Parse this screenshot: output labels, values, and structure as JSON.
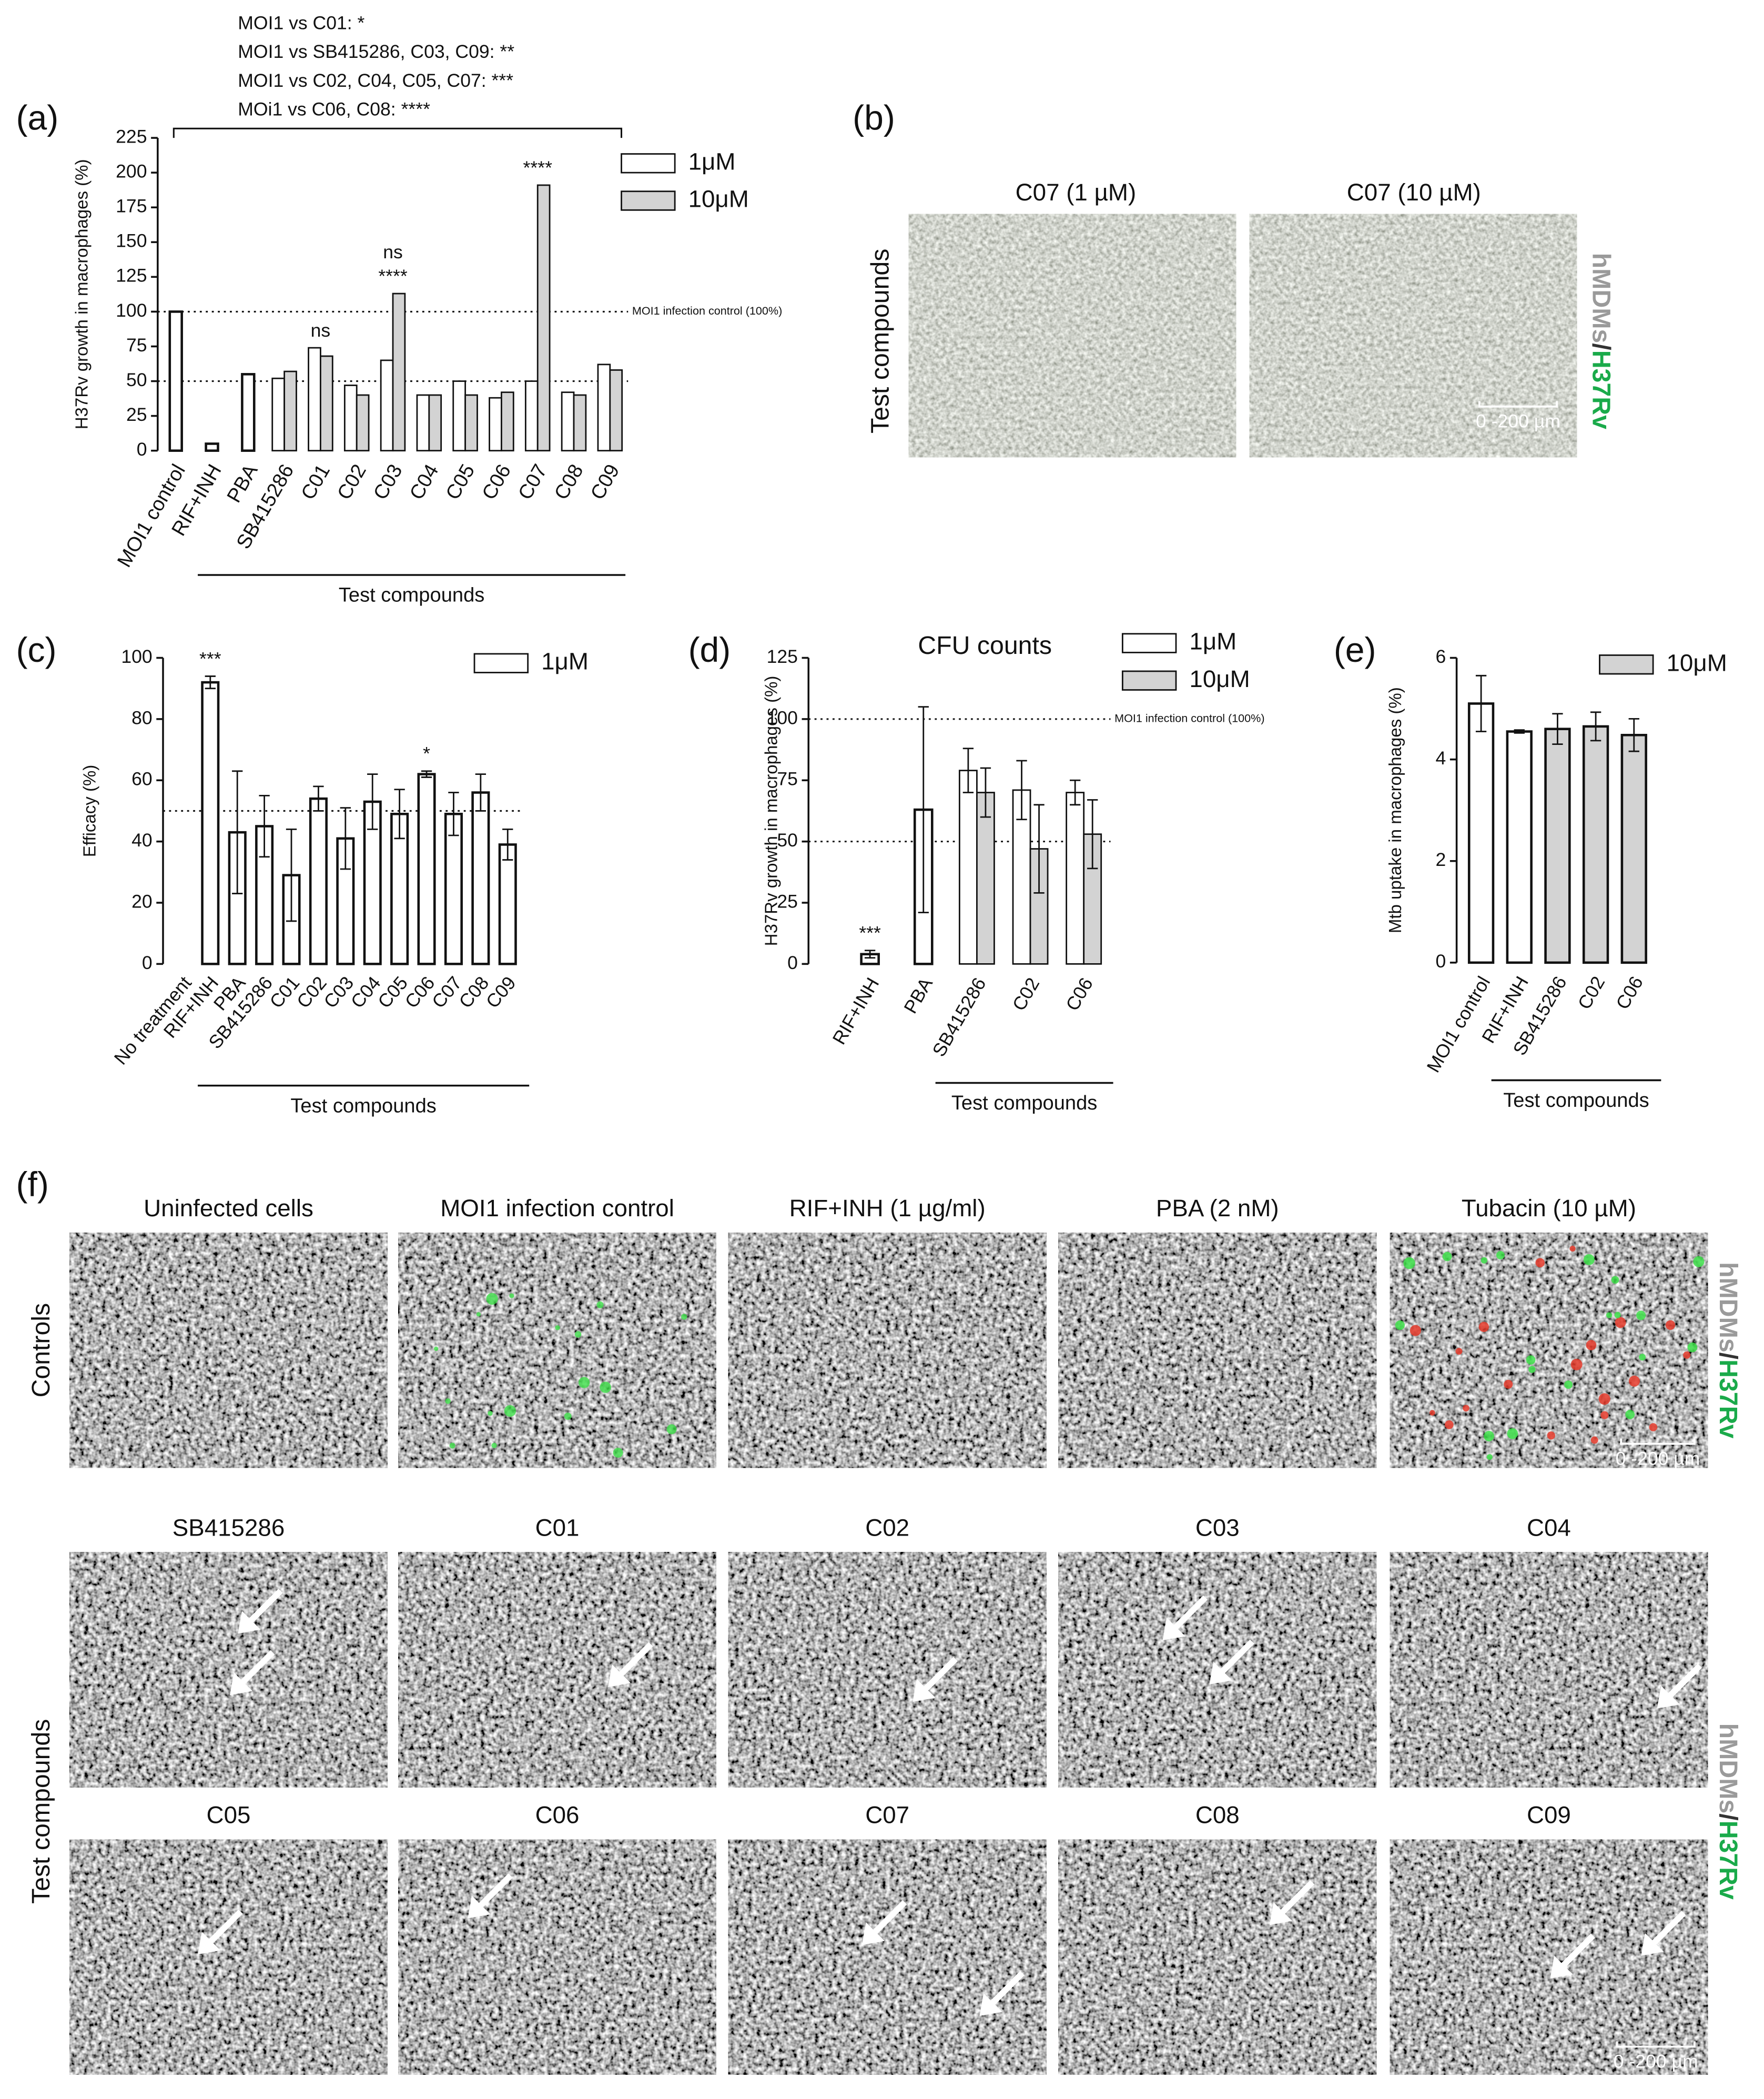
{
  "chart_data": [
    {
      "type": "bar",
      "panel_label": "(a)",
      "notes": [
        "MOI1 vs C01: *",
        "MOI1 vs SB415286, C03, C09: **",
        "MOI1 vs C02, C04, C05, C07: ***",
        "MOi1 vs C06, C08: ****"
      ],
      "ylabel": "H37Rv growth in macrophages (%)",
      "group_label": "Test compounds",
      "categories": [
        "MOI1 control",
        "RIF+INH",
        "PBA",
        "SB415286",
        "C01",
        "C02",
        "C03",
        "C04",
        "C05",
        "C06",
        "C07",
        "C08",
        "C09"
      ],
      "series": [
        {
          "name": "1μM",
          "color": "#ffffff",
          "values": [
            100,
            5,
            55,
            52,
            74,
            47,
            65,
            40,
            50,
            38,
            50,
            42,
            62
          ]
        },
        {
          "name": "10μM",
          "color": "#d3d3d3",
          "values": [
            null,
            null,
            null,
            57,
            68,
            40,
            113,
            40,
            40,
            42,
            191,
            40,
            58
          ]
        }
      ],
      "ylim": [
        0,
        225
      ],
      "yticks": [
        0,
        25,
        50,
        75,
        100,
        125,
        150,
        175,
        200,
        225
      ],
      "reference_lines": [
        {
          "value": 100,
          "label": "MOI1 infection control (100%)"
        },
        {
          "value": 50
        }
      ],
      "annotations": [
        {
          "text": "ns",
          "category": "C01"
        },
        {
          "text": "****",
          "category": "C03"
        },
        {
          "text": "ns",
          "category": "C03"
        },
        {
          "text": "****",
          "category": "C07"
        }
      ]
    },
    {
      "type": "bar",
      "panel_label": "(c)",
      "ylabel": "Efficacy (%)",
      "group_label": "Test compounds",
      "categories": [
        "No treatment",
        "RIF+INH",
        "PBA",
        "SB415286",
        "C01",
        "C02",
        "C03",
        "C04",
        "C05",
        "C06",
        "C07",
        "C08",
        "C09"
      ],
      "series": [
        {
          "name": "1μM",
          "color": "#ffffff",
          "values": [
            null,
            92,
            43,
            45,
            29,
            54,
            41,
            53,
            49,
            62,
            49,
            56,
            39
          ],
          "errors": [
            null,
            2,
            20,
            10,
            15,
            4,
            10,
            9,
            8,
            1,
            7,
            6,
            5
          ]
        }
      ],
      "ylim": [
        0,
        100
      ],
      "yticks": [
        0,
        20,
        40,
        60,
        80,
        100
      ],
      "reference_lines": [
        {
          "value": 50
        }
      ],
      "annotations": [
        {
          "text": "***",
          "category": "RIF+INH"
        },
        {
          "text": "*",
          "category": "C06"
        }
      ]
    },
    {
      "type": "bar",
      "panel_label": "(d)",
      "title": "CFU counts",
      "ylabel": "H37Rv growth in macrophages (%)",
      "group_label": "Test compounds",
      "categories": [
        "RIF+INH",
        "PBA",
        "SB415286",
        "C02",
        "C06"
      ],
      "series": [
        {
          "name": "1μM",
          "color": "#ffffff",
          "values": [
            4,
            63,
            79,
            71,
            70
          ],
          "errors": [
            1.5,
            42,
            9,
            12,
            5
          ]
        },
        {
          "name": "10μM",
          "color": "#d3d3d3",
          "values": [
            null,
            null,
            70,
            47,
            53
          ],
          "errors": [
            null,
            null,
            10,
            18,
            14
          ]
        }
      ],
      "ylim": [
        0,
        125
      ],
      "yticks": [
        0,
        25,
        50,
        75,
        100,
        125
      ],
      "reference_lines": [
        {
          "value": 100,
          "label": "MOI1 infection control (100%)"
        },
        {
          "value": 50
        }
      ],
      "annotations": [
        {
          "text": "***",
          "category": "RIF+INH"
        }
      ]
    },
    {
      "type": "bar",
      "panel_label": "(e)",
      "ylabel": "Mtb uptake in macrophages (%)",
      "group_label": "Test compounds",
      "categories": [
        "MOI1 control",
        "RIF+INH",
        "SB415286",
        "C02",
        "C06"
      ],
      "series": [
        {
          "color": "#ffffff",
          "values": [
            5.1,
            4.55,
            null,
            null,
            null
          ],
          "errors": [
            0.55,
            0.03,
            null,
            null,
            null
          ]
        },
        {
          "name": "10μM",
          "color": "#d3d3d3",
          "values": [
            null,
            null,
            4.6,
            4.65,
            4.48
          ],
          "errors": [
            null,
            null,
            0.3,
            0.28,
            0.32
          ]
        }
      ],
      "ylim": [
        0,
        6
      ],
      "yticks": [
        0,
        2,
        4,
        6
      ]
    }
  ],
  "figure": {
    "b": {
      "label": "(b)",
      "titles": [
        "C07 (1 µM)",
        "C07 (10 µM)"
      ],
      "row_label": "Test compounds",
      "scale": "0 -200 µm"
    },
    "f": {
      "label": "(f)",
      "rows": [
        {
          "label": "Controls",
          "titles": [
            "Uninfected cells",
            "MOI1 infection control",
            "RIF+INH (1 µg/ml)",
            "PBA (2 nM)",
            "Tubacin (10 µM)"
          ]
        },
        {
          "label": "Test compounds",
          "titles": [
            "SB415286",
            "C01",
            "C02",
            "C03",
            "C04",
            "C05",
            "C06",
            "C07",
            "C08",
            "C09"
          ]
        }
      ],
      "scale": "0 -200 µm"
    },
    "stain": [
      "hMDMs",
      "/",
      "H37Rv"
    ]
  }
}
